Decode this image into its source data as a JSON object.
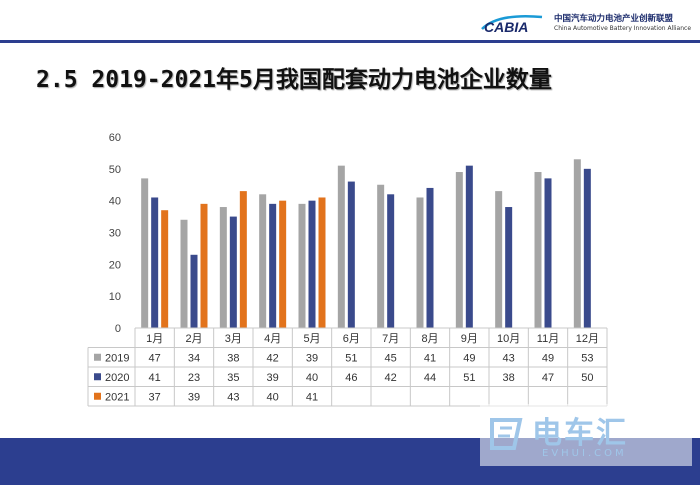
{
  "logo": {
    "brand": "CABIA",
    "cn_name": "中国汽车动力电池产业创新联盟",
    "en_name": "China Automotive Battery Innovation Alliance"
  },
  "slide": {
    "title": "2.5 2019-2021年5月我国配套动力电池企业数量"
  },
  "watermark": {
    "text": "电车汇",
    "sub": "EVHUI.COM"
  },
  "colors": {
    "series_2019": "#a5a5a5",
    "series_2020": "#3a4a8c",
    "series_2021": "#e2731c",
    "accent": "#2c3e8f"
  },
  "chart_data": {
    "type": "bar",
    "categories": [
      "1月",
      "2月",
      "3月",
      "4月",
      "5月",
      "6月",
      "7月",
      "8月",
      "9月",
      "10月",
      "11月",
      "12月"
    ],
    "ylim": [
      0,
      60
    ],
    "yticks": [
      "0",
      "10",
      "20",
      "30",
      "40",
      "50",
      "60"
    ],
    "grid": false,
    "legend": "data-table",
    "series": [
      {
        "name": "2019",
        "values": [
          47,
          34,
          38,
          42,
          39,
          51,
          45,
          41,
          49,
          43,
          49,
          53
        ]
      },
      {
        "name": "2020",
        "values": [
          41,
          23,
          35,
          39,
          40,
          46,
          42,
          44,
          51,
          38,
          47,
          50
        ]
      },
      {
        "name": "2021",
        "values": [
          37,
          39,
          43,
          40,
          41,
          null,
          null,
          null,
          null,
          null,
          null,
          null
        ]
      }
    ]
  }
}
